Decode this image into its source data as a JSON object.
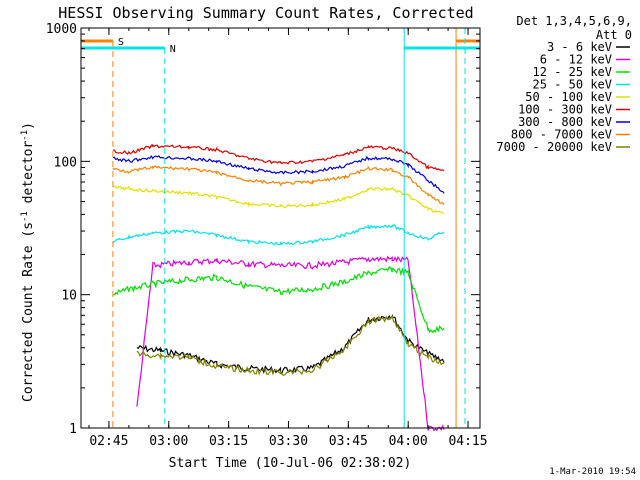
{
  "chart_data": {
    "type": "line",
    "title": "HESSI Observing Summary Count Rates, Corrected",
    "xlabel": "Start Time (10-Jul-06 02:38:02)",
    "ylabel_main": "Corrected Count Rate (s",
    "ylabel_sup1": "-1",
    "ylabel_mid": " detector",
    "ylabel_sup2": "-1",
    "ylabel_end": ")",
    "y_scale": "log",
    "ylim": [
      1,
      1000
    ],
    "xlim": [
      "02:38",
      "04:18"
    ],
    "x_ticks": [
      "02:45",
      "03:00",
      "03:15",
      "03:30",
      "03:45",
      "04:00",
      "04:15"
    ],
    "y_ticks": [
      "1",
      "10",
      "100",
      "1000"
    ],
    "legend_header": [
      "Det 1,3,4,5,6,9,",
      "Att 0"
    ],
    "legend_position": "right",
    "footer_date": "1-Mar-2010 19:54",
    "flags": [
      {
        "label": "S",
        "color": "#ff8000",
        "start": "02:38",
        "end": "02:46",
        "end2_start": "04:12",
        "end2_end": "04:18"
      },
      {
        "label": "N",
        "color": "#00e5e5",
        "start": "02:38",
        "end": "02:59",
        "end2_start": "03:59",
        "end2_end": "04:18"
      }
    ],
    "series": [
      {
        "name": "3 - 6 keV",
        "color": "#000000",
        "x": [
          "02:52",
          "02:58",
          "03:05",
          "03:12",
          "03:20",
          "03:28",
          "03:36",
          "03:44",
          "03:50",
          "03:56",
          "04:00",
          "04:05",
          "04:09"
        ],
        "values": [
          4.0,
          3.8,
          3.5,
          3.0,
          2.8,
          2.7,
          2.8,
          4.0,
          6.5,
          7.0,
          4.5,
          3.6,
          3.2
        ]
      },
      {
        "name": "6 - 12 keV",
        "color": "#e000e0",
        "x": [
          "02:52",
          "02:56",
          "03:05",
          "03:12",
          "03:20",
          "03:28",
          "03:36",
          "03:44",
          "03:50",
          "03:56",
          "04:00",
          "04:05",
          "04:09"
        ],
        "values": [
          1.4,
          16.5,
          17.5,
          18.0,
          17.0,
          16.5,
          16.5,
          17.5,
          18.5,
          18.5,
          18.0,
          1.0,
          1.0
        ]
      },
      {
        "name": "12 - 25 keV",
        "color": "#00e000",
        "x": [
          "02:46",
          "02:50",
          "02:56",
          "03:05",
          "03:12",
          "03:20",
          "03:28",
          "03:36",
          "03:44",
          "03:50",
          "03:56",
          "04:00",
          "04:05",
          "04:09"
        ],
        "values": [
          10.0,
          11.0,
          12.0,
          13.0,
          13.5,
          11.5,
          10.5,
          11.0,
          12.5,
          14.5,
          15.5,
          14.5,
          5.5,
          5.5
        ]
      },
      {
        "name": "25 - 50 keV",
        "color": "#00e5e5",
        "x": [
          "02:46",
          "02:50",
          "02:56",
          "03:05",
          "03:12",
          "03:20",
          "03:28",
          "03:36",
          "03:44",
          "03:50",
          "03:56",
          "04:00",
          "04:05",
          "04:09"
        ],
        "values": [
          25,
          27,
          29,
          30,
          28,
          25,
          24,
          25,
          28,
          32,
          33,
          29,
          26,
          30
        ]
      },
      {
        "name": "50 - 100 keV",
        "color": "#e0e000",
        "x": [
          "02:46",
          "02:50",
          "02:56",
          "03:05",
          "03:12",
          "03:20",
          "03:28",
          "03:36",
          "03:44",
          "03:50",
          "03:56",
          "04:00",
          "04:05",
          "04:09"
        ],
        "values": [
          64,
          62,
          60,
          58,
          54,
          48,
          46,
          47,
          52,
          62,
          62,
          55,
          44,
          40
        ]
      },
      {
        "name": "100 - 300 keV",
        "color": "#e00000",
        "x": [
          "02:46",
          "02:50",
          "02:56",
          "03:05",
          "03:12",
          "03:20",
          "03:28",
          "03:36",
          "03:44",
          "03:50",
          "03:56",
          "04:00",
          "04:05",
          "04:09"
        ],
        "values": [
          120,
          115,
          130,
          128,
          122,
          105,
          97,
          100,
          112,
          128,
          125,
          115,
          90,
          85
        ]
      },
      {
        "name": "300 - 800 keV",
        "color": "#0000e0",
        "x": [
          "02:46",
          "02:50",
          "02:56",
          "03:05",
          "03:12",
          "03:20",
          "03:28",
          "03:36",
          "03:44",
          "03:50",
          "03:56",
          "04:00",
          "04:05",
          "04:09"
        ],
        "values": [
          105,
          100,
          108,
          105,
          100,
          88,
          82,
          84,
          92,
          106,
          104,
          94,
          72,
          58
        ]
      },
      {
        "name": "800 - 7000 keV",
        "color": "#ff8000",
        "x": [
          "02:46",
          "02:50",
          "02:56",
          "03:05",
          "03:12",
          "03:20",
          "03:28",
          "03:36",
          "03:44",
          "03:50",
          "03:56",
          "04:00",
          "04:05",
          "04:09"
        ],
        "values": [
          88,
          84,
          90,
          88,
          82,
          72,
          68,
          70,
          76,
          88,
          86,
          76,
          56,
          48
        ]
      },
      {
        "name": "7000 - 20000 keV",
        "color": "#808000",
        "x": [
          "02:52",
          "02:58",
          "03:05",
          "03:12",
          "03:20",
          "03:28",
          "03:36",
          "03:44",
          "03:50",
          "03:56",
          "04:00",
          "04:05",
          "04:09"
        ],
        "values": [
          3.6,
          3.5,
          3.4,
          2.9,
          2.7,
          2.6,
          2.7,
          3.9,
          6.3,
          6.8,
          4.3,
          3.4,
          3.0
        ]
      }
    ]
  }
}
